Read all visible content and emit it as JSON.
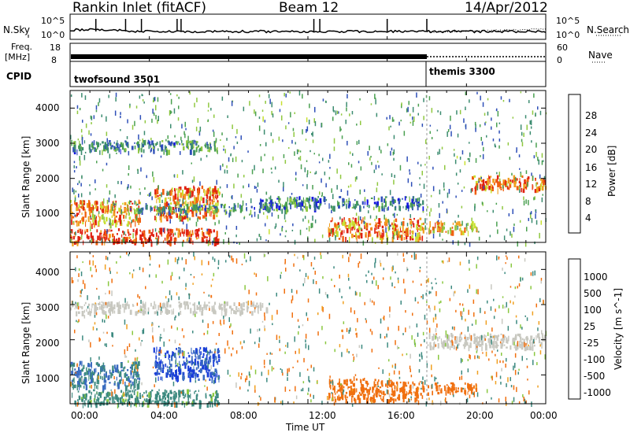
{
  "header": {
    "station": "Rankin Inlet (fitACF)",
    "beam": "Beam 12",
    "date": "14/Apr/2012"
  },
  "nsky_panel": {
    "left_label": "N.Sky",
    "right_label": "N.Search",
    "left_ticks": [
      "10^5",
      "10^0"
    ],
    "right_ticks": [
      "10^5",
      "10^0"
    ]
  },
  "freq_panel": {
    "left_label_1": "Freq.",
    "left_label_2": "[MHz]",
    "left_ticks": [
      "18",
      "8"
    ],
    "right_label": "Nave",
    "right_ticks": [
      "60",
      "0"
    ]
  },
  "cpid_panel": {
    "label": "CPID",
    "segments": [
      {
        "name": "twofsound 3501",
        "start_hour": 0
      },
      {
        "name": "themis 3300",
        "start_hour": 18
      }
    ]
  },
  "colors": {
    "power_scale": [
      "#1515e0",
      "#2e4fb8",
      "#3c8c70",
      "#4aa050",
      "#90c840",
      "#c8e030",
      "#f0a020",
      "#f06010",
      "#e02010"
    ],
    "velocity_scale": [
      "#1a3fd8",
      "#3a6bc0",
      "#3d8a80",
      "#4a9a40",
      "#8ac840",
      "#c8c8c0",
      "#f0a020",
      "#f07010",
      "#e03010",
      "#e01010"
    ]
  },
  "chart_data": [
    {
      "type": "heatmap",
      "name": "Power",
      "xlabel": "",
      "ylabel": "Slant Range [km]",
      "xlim": [
        0,
        24
      ],
      "ylim": [
        180,
        4500
      ],
      "yticks": [
        "1000",
        "2000",
        "3000",
        "4000"
      ],
      "colorbar_label": "Power [dB]",
      "colorbar_ticks": [
        "4",
        "8",
        "12",
        "16",
        "20",
        "24",
        "28"
      ],
      "colorbar_range": [
        0,
        32
      ],
      "features": [
        {
          "x_range": [
            0,
            7.5
          ],
          "y_range": [
            200,
            600
          ],
          "value": 30
        },
        {
          "x_range": [
            0,
            3.5
          ],
          "y_range": [
            700,
            1400
          ],
          "value": 24
        },
        {
          "x_range": [
            4.2,
            7.5
          ],
          "y_range": [
            900,
            1800
          ],
          "value": 26
        },
        {
          "x_range": [
            3.0,
            11.0
          ],
          "y_range": [
            1100,
            1300
          ],
          "value": 10
        },
        {
          "x_range": [
            13.0,
            17.8
          ],
          "y_range": [
            300,
            900
          ],
          "value": 26
        },
        {
          "x_range": [
            9.5,
            17.8
          ],
          "y_range": [
            1200,
            1500
          ],
          "value": 8
        },
        {
          "x_range": [
            0,
            7.5
          ],
          "y_range": [
            2800,
            3100
          ],
          "value": 10
        },
        {
          "x_range": [
            20.2,
            24
          ],
          "y_range": [
            1700,
            2100
          ],
          "value": 26
        },
        {
          "x_range": [
            18.0,
            20.5
          ],
          "y_range": [
            500,
            800
          ],
          "value": 22
        }
      ]
    },
    {
      "type": "heatmap",
      "name": "Velocity",
      "xlabel": "Time UT",
      "ylabel": "Slant Range [km]",
      "xlim": [
        0,
        24
      ],
      "ylim": [
        180,
        4500
      ],
      "xticks": [
        "00:00",
        "04:00",
        "08:00",
        "12:00",
        "16:00",
        "20:00",
        "00:00"
      ],
      "yticks": [
        "1000",
        "2000",
        "3000",
        "4000"
      ],
      "colorbar_label": "Velocity [m s^-1]",
      "colorbar_ticks": [
        "1000",
        "500",
        "100",
        "25",
        "-25",
        "-100",
        "-500",
        "-1000"
      ],
      "features": [
        {
          "x_range": [
            0,
            3.5
          ],
          "y_range": [
            700,
            1400
          ],
          "value": 300
        },
        {
          "x_range": [
            4.2,
            7.5
          ],
          "y_range": [
            900,
            1800
          ],
          "value": 800
        },
        {
          "x_range": [
            0,
            7.5
          ],
          "y_range": [
            200,
            600
          ],
          "value": 150
        },
        {
          "x_range": [
            13.0,
            17.8
          ],
          "y_range": [
            300,
            900
          ],
          "value": -300
        },
        {
          "x_range": [
            0,
            10.0
          ],
          "y_range": [
            2800,
            3100
          ],
          "value": 0
        },
        {
          "x_range": [
            18.0,
            24
          ],
          "y_range": [
            1800,
            2200
          ],
          "value": 0
        },
        {
          "x_range": [
            18.0,
            20.5
          ],
          "y_range": [
            500,
            800
          ],
          "value": -200
        }
      ]
    }
  ]
}
